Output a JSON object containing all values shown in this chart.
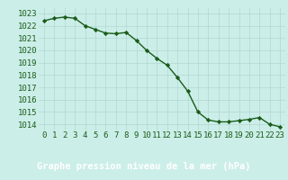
{
  "x": [
    0,
    1,
    2,
    3,
    4,
    5,
    6,
    7,
    8,
    9,
    10,
    11,
    12,
    13,
    14,
    15,
    16,
    17,
    18,
    19,
    20,
    21,
    22,
    23
  ],
  "y": [
    1022.4,
    1022.6,
    1022.7,
    1022.6,
    1022.0,
    1021.7,
    1021.4,
    1021.35,
    1021.45,
    1020.8,
    1020.0,
    1019.35,
    1018.8,
    1017.8,
    1016.7,
    1015.0,
    1014.35,
    1014.2,
    1014.2,
    1014.3,
    1014.4,
    1014.55,
    1014.0,
    1013.8
  ],
  "ylim": [
    1013.5,
    1023.5
  ],
  "yticks": [
    1014,
    1015,
    1016,
    1017,
    1018,
    1019,
    1020,
    1021,
    1022,
    1023
  ],
  "xticks": [
    0,
    1,
    2,
    3,
    4,
    5,
    6,
    7,
    8,
    9,
    10,
    11,
    12,
    13,
    14,
    15,
    16,
    17,
    18,
    19,
    20,
    21,
    22,
    23
  ],
  "line_color": "#1a5c1a",
  "marker": "D",
  "marker_size": 2.2,
  "bg_color": "#cceee8",
  "grid_color": "#b0d8d0",
  "footer_bg": "#2d6b2d",
  "footer_text": "Graphe pression niveau de la mer (hPa)",
  "footer_text_color": "#ffffff",
  "tick_label_color": "#1a5c1a",
  "tick_label_fontsize": 6.5,
  "footer_fontsize": 7.5,
  "linewidth": 1.0
}
